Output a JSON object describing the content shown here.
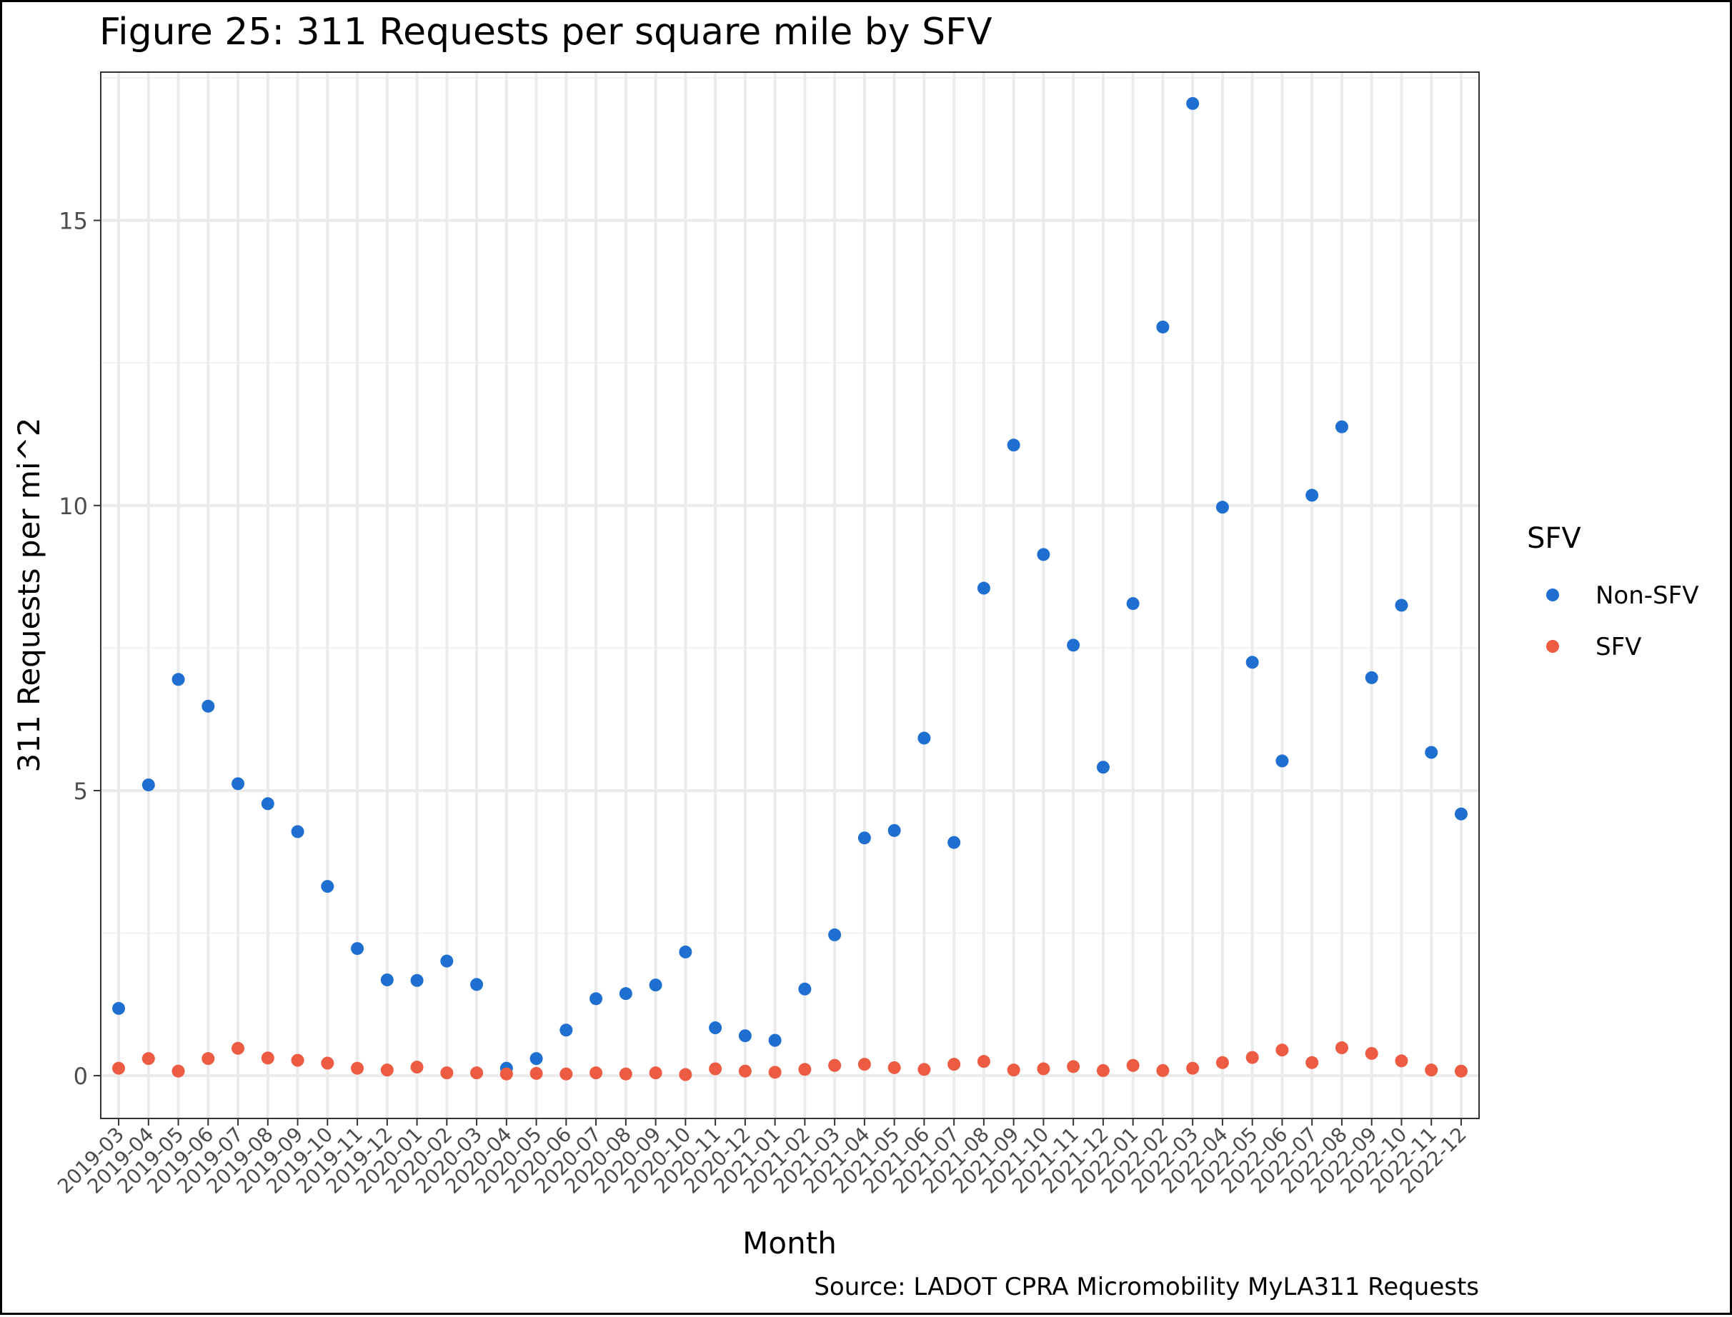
{
  "chart_data": {
    "type": "scatter",
    "title": "Figure 25: 311 Requests per square mile by SFV",
    "caption": "Source: LADOT CPRA Micromobility MyLA311 Requests",
    "xlabel": "Month",
    "ylabel": "311 Requests per mi^2",
    "ylim": [
      -0.75,
      17.6
    ],
    "yticks": [
      0,
      5,
      10,
      15
    ],
    "grid": true,
    "legend": {
      "title": "SFV",
      "position": "right"
    },
    "categories": [
      "2019-03",
      "2019-04",
      "2019-05",
      "2019-06",
      "2019-07",
      "2019-08",
      "2019-09",
      "2019-10",
      "2019-11",
      "2019-12",
      "2020-01",
      "2020-02",
      "2020-03",
      "2020-04",
      "2020-05",
      "2020-06",
      "2020-07",
      "2020-08",
      "2020-09",
      "2020-10",
      "2020-11",
      "2020-12",
      "2021-01",
      "2021-02",
      "2021-03",
      "2021-04",
      "2021-05",
      "2021-06",
      "2021-07",
      "2021-08",
      "2021-09",
      "2021-10",
      "2021-11",
      "2021-12",
      "2022-01",
      "2022-02",
      "2022-03",
      "2022-04",
      "2022-05",
      "2022-06",
      "2022-07",
      "2022-08",
      "2022-09",
      "2022-10",
      "2022-11",
      "2022-12"
    ],
    "series": [
      {
        "name": "Non-SFV",
        "color": "#1f6fd1",
        "values": [
          1.18,
          5.1,
          6.95,
          6.48,
          5.12,
          4.77,
          4.28,
          3.32,
          2.23,
          1.68,
          1.67,
          2.01,
          1.6,
          0.13,
          0.3,
          0.8,
          1.35,
          1.44,
          1.59,
          2.17,
          0.84,
          0.7,
          0.62,
          1.52,
          2.47,
          4.17,
          4.3,
          5.92,
          4.09,
          8.55,
          11.06,
          9.14,
          7.55,
          5.41,
          8.28,
          13.13,
          17.05,
          9.97,
          7.25,
          5.52,
          10.18,
          11.38,
          6.98,
          8.25,
          5.67,
          4.59
        ]
      },
      {
        "name": "SFV",
        "color": "#ec5b42",
        "values": [
          0.13,
          0.3,
          0.08,
          0.3,
          0.48,
          0.31,
          0.27,
          0.22,
          0.13,
          0.1,
          0.15,
          0.05,
          0.05,
          0.03,
          0.04,
          0.03,
          0.05,
          0.03,
          0.05,
          0.02,
          0.12,
          0.08,
          0.06,
          0.11,
          0.18,
          0.2,
          0.14,
          0.11,
          0.2,
          0.25,
          0.1,
          0.12,
          0.16,
          0.09,
          0.18,
          0.09,
          0.13,
          0.23,
          0.32,
          0.45,
          0.23,
          0.49,
          0.39,
          0.26,
          0.1,
          0.08
        ]
      }
    ]
  }
}
